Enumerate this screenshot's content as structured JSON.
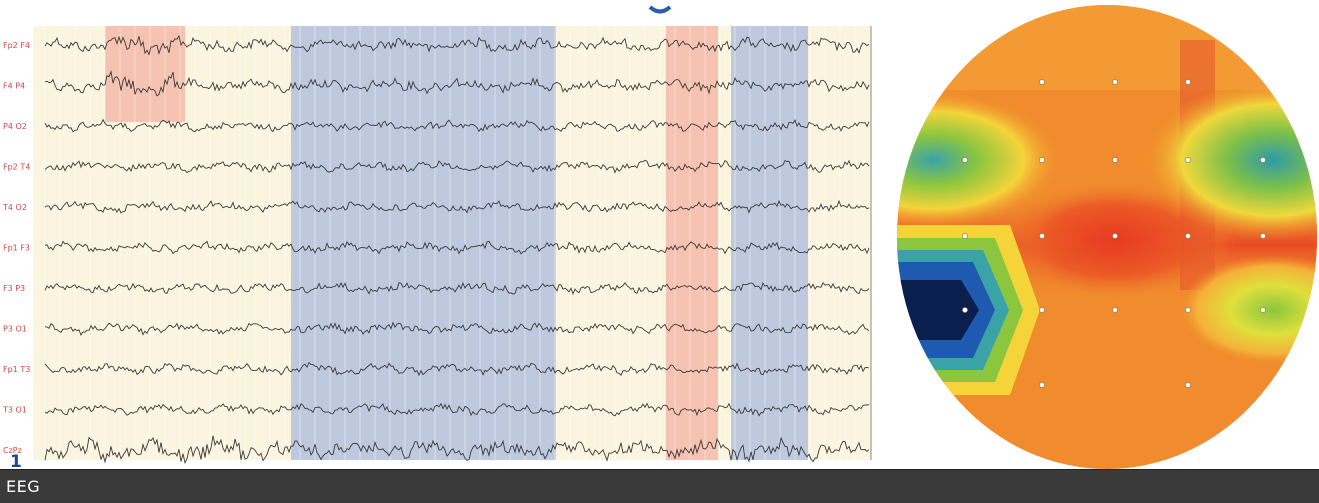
{
  "figure": {
    "page_number": "1",
    "caption": "EEG"
  },
  "eeg": {
    "background": "#fbf5df",
    "trace_color": "#3a3a3a",
    "channels": [
      "Fp2 F4",
      "F4 P4",
      "P4 O2",
      "Fp2 T4",
      "T4 O2",
      "Fp1 F3",
      "F3 P3",
      "P3 O1",
      "Fp1 T3",
      "T3 O1",
      "CzPz"
    ],
    "highlights": [
      {
        "kind": "red",
        "color": "#f4b9a9"
      },
      {
        "kind": "blue",
        "color": "#b3c1df"
      },
      {
        "kind": "red",
        "color": "#f4b9a9"
      },
      {
        "kind": "blue",
        "color": "#b3c1df"
      }
    ]
  },
  "topomap": {
    "colors": {
      "outside": "#ffffff",
      "orange": "#f08c2d",
      "red": "#e73a22",
      "yellow": "#f5d43a",
      "green": "#8cc63f",
      "teal": "#3aa3a8",
      "blue": "#1e5bb0",
      "dark_blue": "#0a1f4d"
    },
    "electrode_color": "#ffffff"
  }
}
